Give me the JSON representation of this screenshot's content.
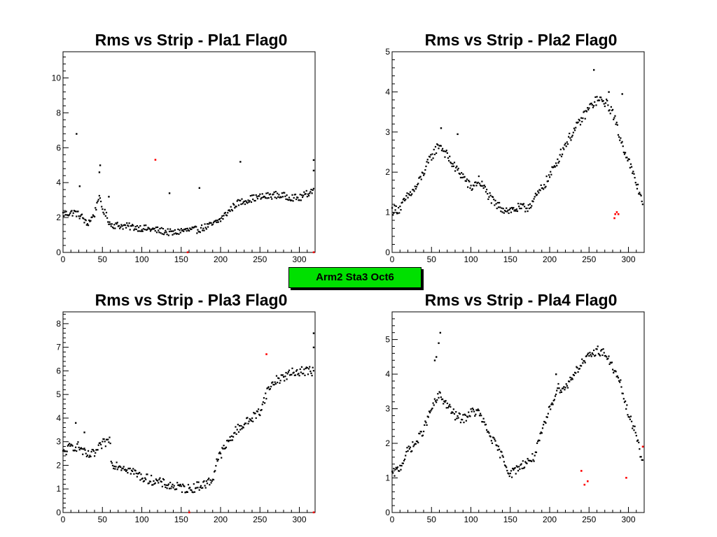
{
  "badge": "Arm2 Sta3 Oct6",
  "colors": {
    "normal": "#000000",
    "flagged": "#ff0000",
    "badge": "#00e000"
  },
  "chart_data": [
    {
      "type": "scatter",
      "title": "Rms vs Strip - Pla1 Flag0",
      "xlim": [
        0,
        320
      ],
      "ylim": [
        0,
        11.5
      ],
      "xticks": [
        0,
        50,
        100,
        150,
        200,
        250,
        300
      ],
      "yticks": [
        0,
        2,
        4,
        6,
        8,
        10
      ],
      "anchors": [
        [
          0,
          2.2
        ],
        [
          15,
          2.3
        ],
        [
          25,
          2.0
        ],
        [
          30,
          1.6
        ],
        [
          40,
          2.2
        ],
        [
          45,
          3.2
        ],
        [
          50,
          2.5
        ],
        [
          55,
          2.1
        ],
        [
          60,
          1.6
        ],
        [
          100,
          1.4
        ],
        [
          130,
          1.2
        ],
        [
          140,
          1.1
        ],
        [
          150,
          1.25
        ],
        [
          170,
          1.3
        ],
        [
          190,
          1.6
        ],
        [
          200,
          1.9
        ],
        [
          220,
          2.8
        ],
        [
          240,
          3.1
        ],
        [
          270,
          3.3
        ],
        [
          300,
          3.1
        ],
        [
          318,
          3.6
        ]
      ],
      "noise": 0.2,
      "outliers": [
        [
          17,
          6.8
        ],
        [
          21,
          3.8
        ],
        [
          46,
          4.6
        ],
        [
          47,
          5.0
        ],
        [
          58,
          3.2
        ],
        [
          135,
          3.4
        ],
        [
          173,
          3.7
        ],
        [
          225,
          5.2
        ],
        [
          318,
          5.3
        ],
        [
          318,
          4.7
        ]
      ],
      "flagged": [
        [
          117,
          5.3
        ],
        [
          158,
          0.0
        ],
        [
          318,
          0.0
        ]
      ]
    },
    {
      "type": "scatter",
      "title": "Rms vs Strip - Pla2 Flag0",
      "xlim": [
        0,
        320
      ],
      "ylim": [
        0,
        5
      ],
      "xticks": [
        0,
        50,
        100,
        150,
        200,
        250,
        300
      ],
      "yticks": [
        0,
        1,
        2,
        3,
        4,
        5
      ],
      "anchors": [
        [
          0,
          1.05
        ],
        [
          10,
          1.1
        ],
        [
          20,
          1.4
        ],
        [
          30,
          1.6
        ],
        [
          40,
          2.0
        ],
        [
          50,
          2.4
        ],
        [
          60,
          2.7
        ],
        [
          70,
          2.4
        ],
        [
          80,
          2.1
        ],
        [
          90,
          1.9
        ],
        [
          100,
          1.6
        ],
        [
          110,
          1.8
        ],
        [
          120,
          1.5
        ],
        [
          130,
          1.2
        ],
        [
          140,
          1.1
        ],
        [
          150,
          1.05
        ],
        [
          160,
          1.1
        ],
        [
          170,
          1.1
        ],
        [
          180,
          1.3
        ],
        [
          190,
          1.6
        ],
        [
          200,
          1.9
        ],
        [
          210,
          2.3
        ],
        [
          220,
          2.7
        ],
        [
          230,
          3.0
        ],
        [
          240,
          3.3
        ],
        [
          250,
          3.6
        ],
        [
          260,
          3.8
        ],
        [
          270,
          3.75
        ],
        [
          280,
          3.5
        ],
        [
          290,
          2.8
        ],
        [
          300,
          2.3
        ],
        [
          310,
          1.7
        ],
        [
          318,
          1.3
        ]
      ],
      "noise": 0.12,
      "outliers": [
        [
          62,
          3.1
        ],
        [
          83,
          2.95
        ],
        [
          256,
          4.55
        ],
        [
          275,
          4.0
        ],
        [
          292,
          3.95
        ]
      ],
      "flagged": [
        [
          282,
          0.85
        ],
        [
          283,
          0.95
        ],
        [
          285,
          1.0
        ],
        [
          287,
          0.95
        ]
      ]
    },
    {
      "type": "scatter",
      "title": "Rms vs Strip - Pla3 Flag0",
      "xlim": [
        0,
        320
      ],
      "ylim": [
        0,
        8.5
      ],
      "xticks": [
        0,
        50,
        100,
        150,
        200,
        250,
        300
      ],
      "yticks": [
        0,
        1,
        2,
        3,
        4,
        5,
        6,
        7,
        8
      ],
      "anchors": [
        [
          0,
          2.5
        ],
        [
          10,
          2.8
        ],
        [
          20,
          2.8
        ],
        [
          30,
          2.4
        ],
        [
          40,
          2.5
        ],
        [
          50,
          2.9
        ],
        [
          60,
          3.1
        ],
        [
          61,
          2.1
        ],
        [
          80,
          1.9
        ],
        [
          100,
          1.5
        ],
        [
          120,
          1.3
        ],
        [
          140,
          1.1
        ],
        [
          160,
          1.0
        ],
        [
          180,
          1.2
        ],
        [
          190,
          1.4
        ],
        [
          195,
          2.2
        ],
        [
          210,
          3.0
        ],
        [
          220,
          3.5
        ],
        [
          240,
          4.0
        ],
        [
          250,
          4.3
        ],
        [
          260,
          5.2
        ],
        [
          270,
          5.6
        ],
        [
          290,
          5.9
        ],
        [
          300,
          6.0
        ],
        [
          318,
          6.0
        ]
      ],
      "noise": 0.2,
      "outliers": [
        [
          16,
          3.8
        ],
        [
          27,
          3.4
        ],
        [
          318,
          7.6
        ],
        [
          318,
          7.0
        ]
      ],
      "flagged": [
        [
          258,
          6.7
        ],
        [
          160,
          0.0
        ],
        [
          318,
          0.0
        ]
      ]
    },
    {
      "type": "scatter",
      "title": "Rms vs Strip - Pla4 Flag0",
      "xlim": [
        0,
        320
      ],
      "ylim": [
        0,
        5.8
      ],
      "xticks": [
        0,
        50,
        100,
        150,
        200,
        250,
        300
      ],
      "yticks": [
        0,
        1,
        2,
        3,
        4,
        5
      ],
      "anchors": [
        [
          0,
          1.1
        ],
        [
          10,
          1.3
        ],
        [
          20,
          1.8
        ],
        [
          30,
          2.0
        ],
        [
          40,
          2.4
        ],
        [
          50,
          3.0
        ],
        [
          60,
          3.4
        ],
        [
          70,
          3.1
        ],
        [
          80,
          2.8
        ],
        [
          90,
          2.7
        ],
        [
          100,
          2.9
        ],
        [
          110,
          2.9
        ],
        [
          120,
          2.4
        ],
        [
          130,
          2.0
        ],
        [
          140,
          1.6
        ],
        [
          150,
          1.1
        ],
        [
          160,
          1.3
        ],
        [
          180,
          1.6
        ],
        [
          190,
          2.3
        ],
        [
          200,
          3.0
        ],
        [
          210,
          3.6
        ],
        [
          220,
          3.6
        ],
        [
          230,
          4.0
        ],
        [
          240,
          4.3
        ],
        [
          250,
          4.5
        ],
        [
          260,
          4.7
        ],
        [
          270,
          4.6
        ],
        [
          280,
          4.2
        ],
        [
          290,
          3.7
        ],
        [
          300,
          2.8
        ],
        [
          310,
          2.3
        ],
        [
          318,
          1.4
        ]
      ],
      "noise": 0.13,
      "outliers": [
        [
          61,
          5.2
        ],
        [
          59,
          4.9
        ],
        [
          56,
          4.5
        ],
        [
          54,
          4.4
        ],
        [
          208,
          4.0
        ]
      ],
      "flagged": [
        [
          240,
          1.2
        ],
        [
          244,
          0.8
        ],
        [
          248,
          0.9
        ],
        [
          297,
          1.0
        ],
        [
          318,
          1.9
        ]
      ]
    }
  ]
}
